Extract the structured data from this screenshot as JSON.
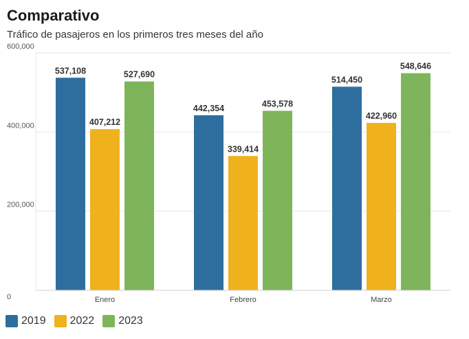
{
  "header": {
    "title": "Comparativo",
    "subtitle": "Tráfico de pasajeros en los primeros tres meses del año"
  },
  "chart_data": {
    "type": "bar",
    "title": "Comparativo",
    "subtitle": "Tráfico de pasajeros en los primeros tres meses del año",
    "categories": [
      "Enero",
      "Febrero",
      "Marzo"
    ],
    "series": [
      {
        "name": "2019",
        "color": "#2e6e9e",
        "values": [
          537108,
          442354,
          514450
        ],
        "labels": [
          "537,108",
          "442,354",
          "514,450"
        ]
      },
      {
        "name": "2022",
        "color": "#efb21d",
        "values": [
          407212,
          339414,
          422960
        ],
        "labels": [
          "407,212",
          "339,414",
          "422,960"
        ]
      },
      {
        "name": "2023",
        "color": "#7fb55a",
        "values": [
          527690,
          453578,
          548646
        ],
        "labels": [
          "527,690",
          "453,578",
          "548,646"
        ]
      }
    ],
    "ylim": [
      0,
      600000
    ],
    "yticks": [
      0,
      200000,
      400000,
      600000
    ],
    "ytick_labels": [
      "0",
      "200,000",
      "400,000",
      "600,000"
    ],
    "grid": true,
    "legend_position": "bottom-left"
  }
}
